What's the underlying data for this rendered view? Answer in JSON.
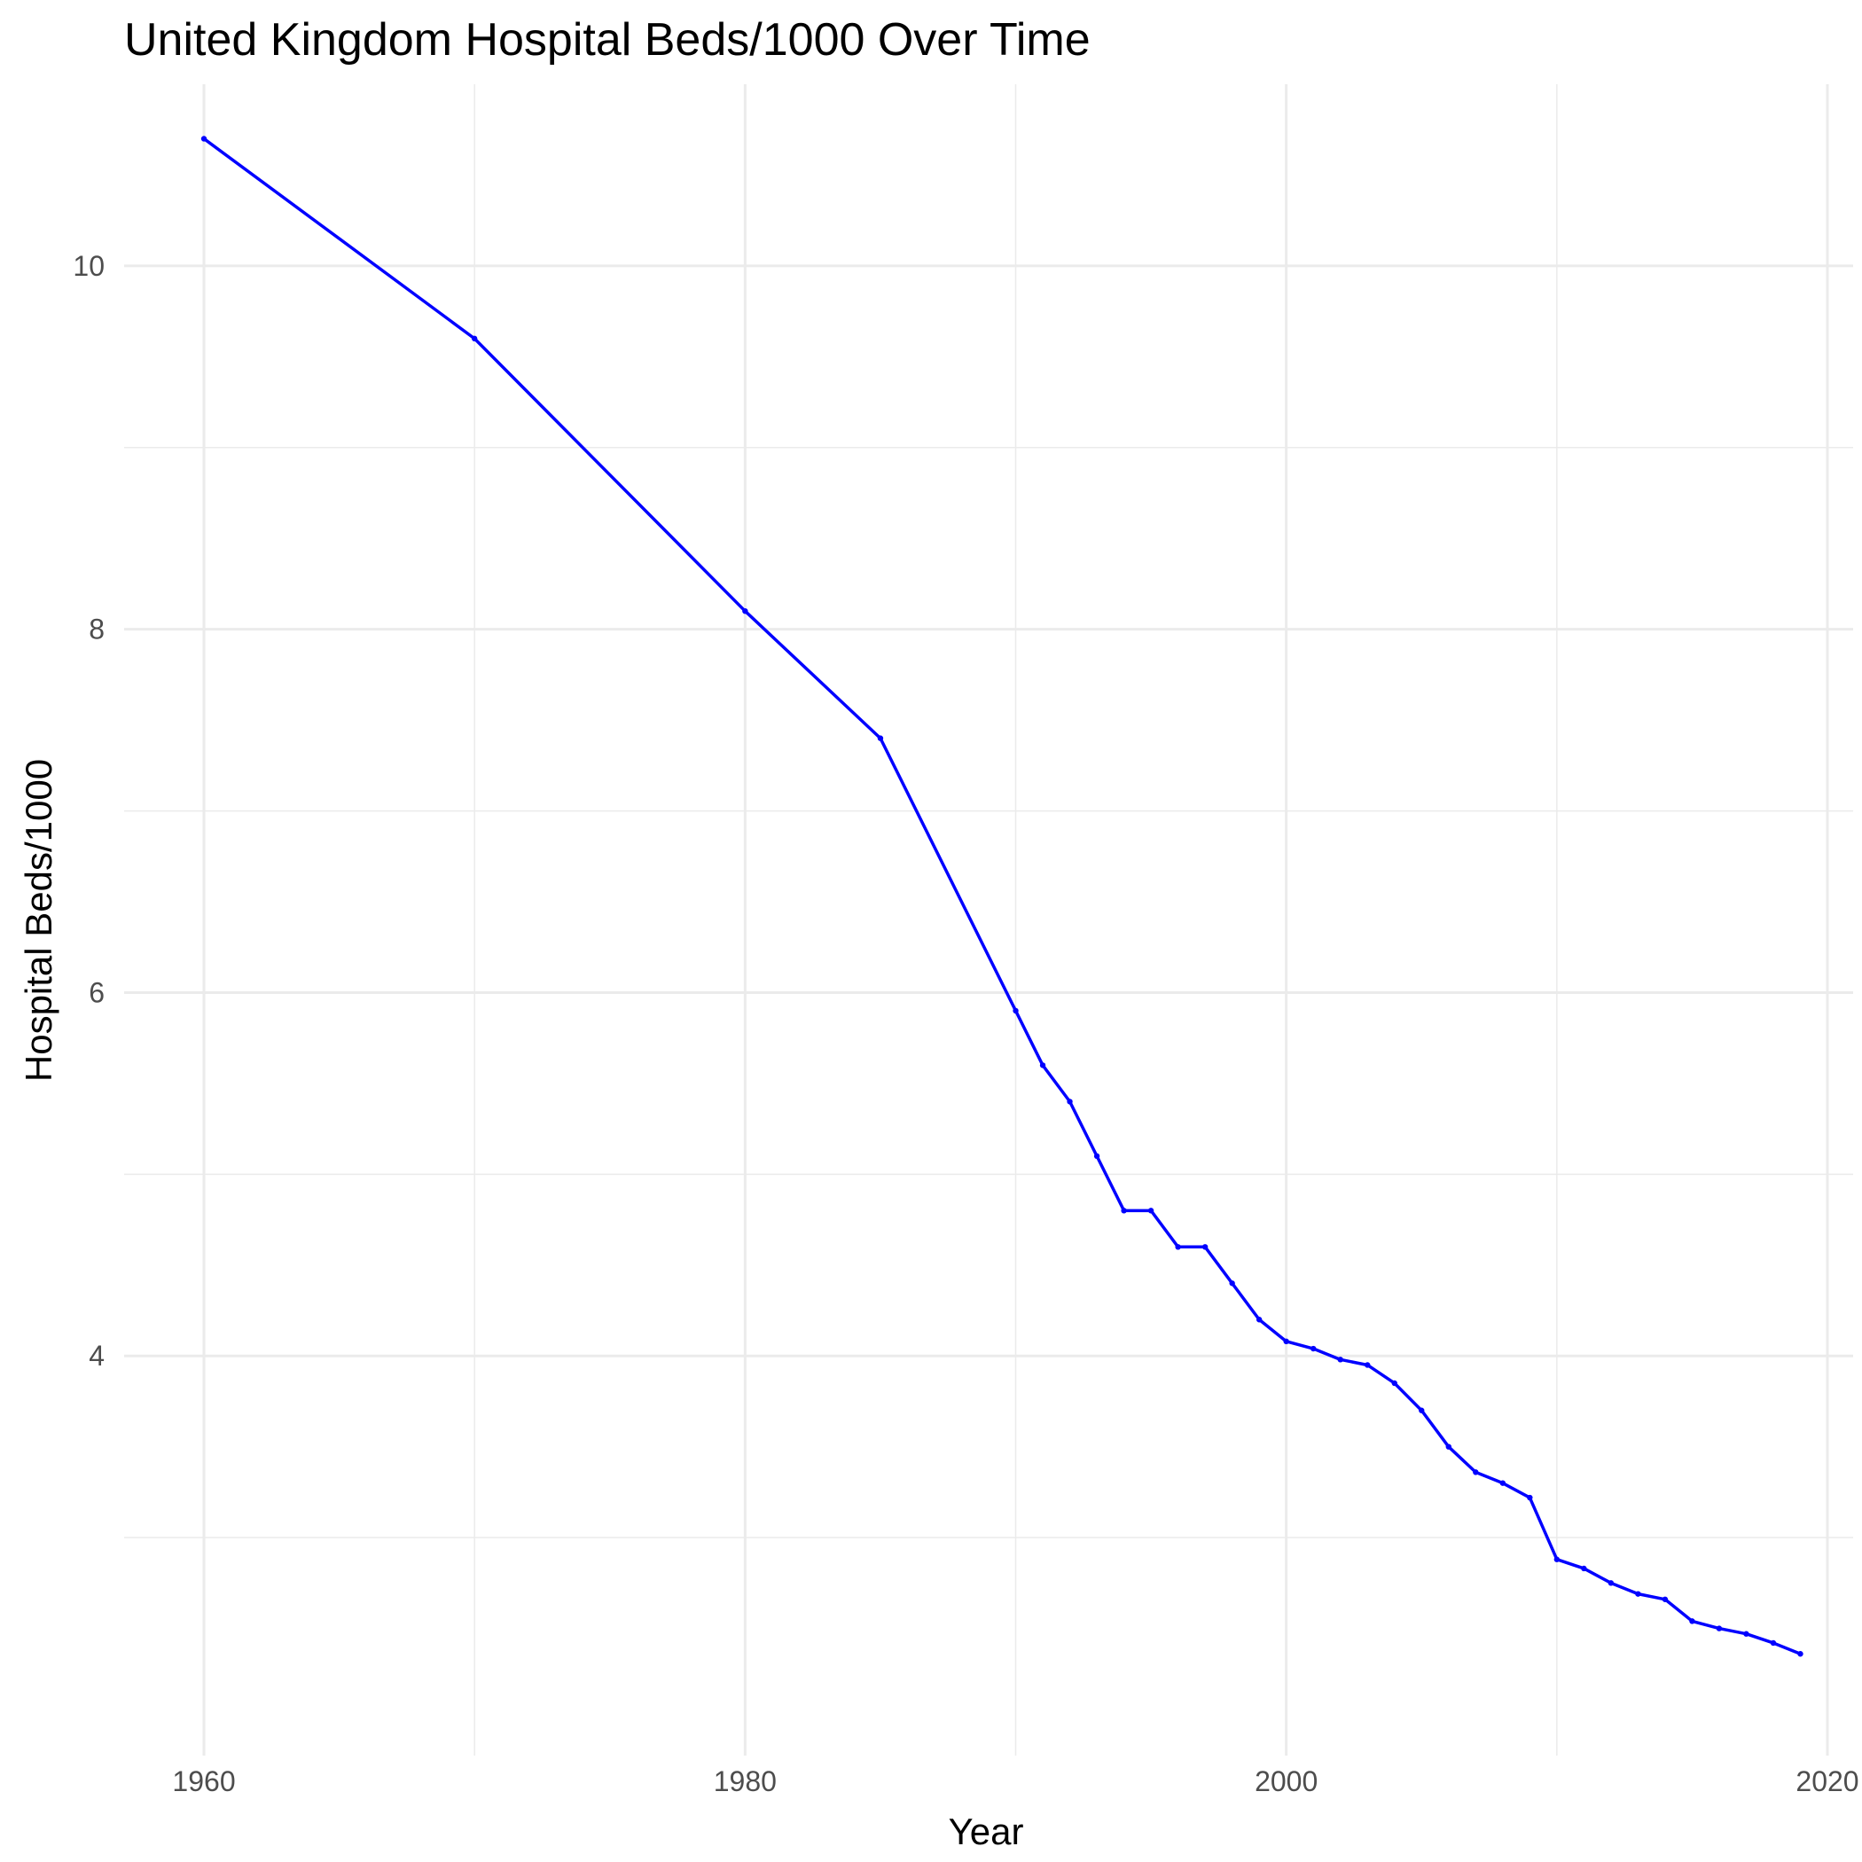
{
  "chart_data": {
    "type": "line",
    "title": "United Kingdom Hospital Beds/1000 Over Time",
    "xlabel": "Year",
    "ylabel": "Hospital Beds/1000",
    "xlim": [
      1957.05,
      2020.95
    ],
    "ylim": [
      1.8,
      11.0
    ],
    "x_ticks": [
      1960,
      1980,
      2000,
      2020
    ],
    "x_tick_labels": [
      "1960",
      "1980",
      "2000",
      "2020"
    ],
    "x_minor_ticks": [
      1970,
      1990,
      2010
    ],
    "y_ticks": [
      4,
      6,
      8,
      10
    ],
    "y_tick_labels": [
      "4",
      "6",
      "8",
      "10"
    ],
    "y_minor_ticks": [
      3,
      5,
      7,
      9
    ],
    "grid": true,
    "legend": "none",
    "line_color": "#0000ff",
    "series": [
      {
        "x": [
          1960,
          1970,
          1980,
          1985,
          1990,
          1991,
          1992,
          1993,
          1994,
          1995,
          1996,
          1997,
          1998,
          1999,
          2000,
          2001,
          2002,
          2003,
          2004,
          2005,
          2006,
          2007,
          2008,
          2009,
          2010,
          2011,
          2012,
          2013,
          2014,
          2015,
          2016,
          2017,
          2018,
          2019
        ],
        "values": [
          10.7,
          9.6,
          8.1,
          7.4,
          5.9,
          5.6,
          5.4,
          5.1,
          4.8,
          4.8,
          4.6,
          4.6,
          4.4,
          4.2,
          4.08,
          4.04,
          3.98,
          3.95,
          3.85,
          3.7,
          3.5,
          3.36,
          3.3,
          3.22,
          2.88,
          2.83,
          2.75,
          2.69,
          2.66,
          2.54,
          2.5,
          2.47,
          2.42,
          2.36
        ]
      }
    ]
  }
}
